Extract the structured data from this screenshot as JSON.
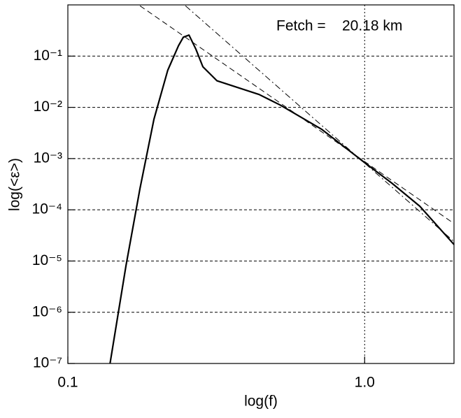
{
  "chart_data": {
    "type": "line",
    "annotation": "Fetch =    20.18 km",
    "x_label": "log(f)",
    "y_label": "log(<ε>)",
    "xscale": "log",
    "yscale": "log",
    "xlim": [
      0.1,
      2
    ],
    "ylim": [
      1e-07,
      1
    ],
    "xticks": [
      0.1,
      {
        "value": 1,
        "label": "1.0"
      }
    ],
    "yticks": [
      {
        "value": 1e-07,
        "label": "10⁻⁷"
      },
      {
        "value": 1e-06,
        "label": "10⁻⁶"
      },
      {
        "value": 1e-05,
        "label": "10⁻⁵"
      },
      {
        "value": 0.0001,
        "label": "10⁻⁴"
      },
      {
        "value": 0.001,
        "label": "10⁻³"
      },
      {
        "value": 0.01,
        "label": "10⁻²"
      },
      {
        "value": 0.1,
        "label": "10⁻¹"
      }
    ],
    "grid": true,
    "series": [
      {
        "color": "#000000",
        "style": "solid",
        "width": 2.2,
        "x": [
          0.1387,
          0.157,
          0.175,
          0.195,
          0.217,
          0.236,
          0.245,
          0.256,
          0.27,
          0.285,
          0.318,
          0.374,
          0.441,
          0.519,
          0.718,
          0.995,
          1.236,
          1.535,
          2.0
        ],
        "values": [
          1e-07,
          8.1e-06,
          0.00026,
          0.0059,
          0.053,
          0.16,
          0.234,
          0.257,
          0.137,
          0.062,
          0.033,
          0.0243,
          0.0178,
          0.0111,
          0.0037,
          0.00085,
          0.00033,
          0.000117,
          2.1e-05
        ]
      },
      {
        "color": "#000000",
        "style": "dashed",
        "width": 1,
        "x": [
          0.175,
          2.0
        ],
        "values": [
          0.96,
          5.4e-05
        ]
      },
      {
        "color": "#000000",
        "style": "dashdot",
        "width": 1,
        "x": [
          0.249,
          2.0
        ],
        "values": [
          0.96,
          2.4e-05
        ]
      }
    ]
  }
}
